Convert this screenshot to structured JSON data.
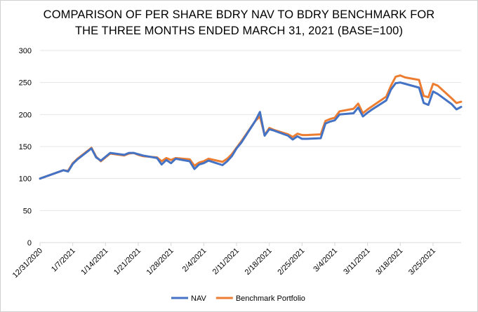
{
  "chart_data": {
    "type": "line",
    "title_lines": [
      "COMPARISON OF PER SHARE BDRY NAV TO BDRY BENCHMARK FOR",
      "THE THREE MONTHS ENDED MARCH 31, 2021 (BASE=100)"
    ],
    "xlabel": "",
    "ylabel": "",
    "ylim": [
      0,
      300
    ],
    "yticks": [
      0,
      50,
      100,
      150,
      200,
      250,
      300
    ],
    "x_domain": [
      0,
      90
    ],
    "xticks": [
      {
        "day": 0,
        "label": "12/31/2020"
      },
      {
        "day": 7,
        "label": "1/7/2021"
      },
      {
        "day": 14,
        "label": "1/14/2021"
      },
      {
        "day": 21,
        "label": "1/21/2021"
      },
      {
        "day": 28,
        "label": "1/28/2021"
      },
      {
        "day": 35,
        "label": "2/4/2021"
      },
      {
        "day": 42,
        "label": "2/11/2021"
      },
      {
        "day": 49,
        "label": "2/18/2021"
      },
      {
        "day": 56,
        "label": "2/25/2021"
      },
      {
        "day": 63,
        "label": "3/4/2021"
      },
      {
        "day": 70,
        "label": "3/11/2021"
      },
      {
        "day": 77,
        "label": "3/18/2021"
      },
      {
        "day": 84,
        "label": "3/25/2021"
      }
    ],
    "grid": "horizontal",
    "legend_position": "bottom-center",
    "series": [
      {
        "name": "NAV",
        "color": "#4472C4",
        "x": [
          0,
          5,
          6,
          7,
          8,
          11,
          12,
          13,
          14,
          15,
          18,
          19,
          20,
          21,
          22,
          25,
          26,
          27,
          28,
          29,
          32,
          33,
          34,
          35,
          36,
          39,
          40,
          41,
          42,
          43,
          46,
          47,
          48,
          49,
          50,
          53,
          54,
          55,
          56,
          57,
          60,
          61,
          62,
          63,
          64,
          67,
          68,
          69,
          70,
          71,
          74,
          75,
          76,
          77,
          78,
          81,
          82,
          83,
          84,
          85,
          88,
          89,
          90
        ],
        "values": [
          100,
          113,
          111,
          123,
          130,
          147,
          133,
          128,
          134,
          140,
          137,
          140,
          140,
          138,
          136,
          132,
          122,
          129,
          124,
          131,
          127,
          115,
          122,
          124,
          128,
          121,
          127,
          135,
          147,
          156,
          190,
          204,
          167,
          177,
          175,
          167,
          161,
          166,
          162,
          162,
          163,
          186,
          189,
          191,
          200,
          202,
          211,
          197,
          203,
          208,
          222,
          239,
          249,
          250,
          248,
          242,
          218,
          215,
          236,
          232,
          216,
          208,
          212
        ]
      },
      {
        "name": "Benchmark Portfolio",
        "color": "#ED7D31",
        "x": [
          0,
          5,
          6,
          7,
          8,
          11,
          12,
          13,
          14,
          15,
          18,
          19,
          20,
          21,
          22,
          25,
          26,
          27,
          28,
          29,
          32,
          33,
          34,
          35,
          36,
          39,
          40,
          41,
          42,
          43,
          46,
          47,
          48,
          49,
          50,
          53,
          54,
          55,
          56,
          57,
          60,
          61,
          62,
          63,
          64,
          67,
          68,
          69,
          70,
          71,
          74,
          75,
          76,
          77,
          78,
          81,
          82,
          83,
          84,
          85,
          88,
          89,
          90
        ],
        "values": [
          100,
          113,
          112,
          124,
          131,
          148,
          134,
          127,
          133,
          139,
          136,
          139,
          140,
          137,
          135,
          133,
          127,
          132,
          129,
          132,
          130,
          120,
          125,
          127,
          131,
          126,
          131,
          138,
          148,
          158,
          190,
          197,
          168,
          179,
          176,
          169,
          165,
          170,
          168,
          168,
          169,
          190,
          193,
          195,
          205,
          209,
          217,
          202,
          208,
          213,
          228,
          245,
          259,
          261,
          258,
          254,
          229,
          227,
          248,
          245,
          225,
          218,
          220
        ]
      }
    ]
  }
}
